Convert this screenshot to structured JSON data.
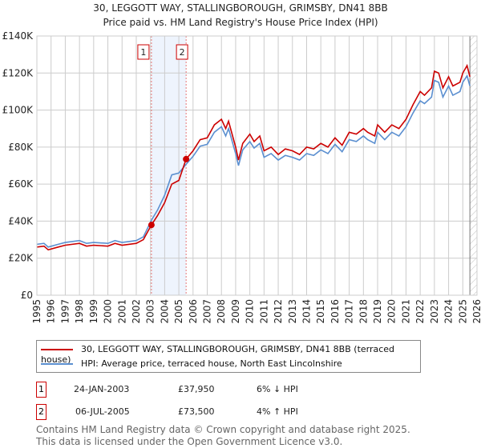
{
  "title_line1": "30, LEGGOTT WAY, STALLINGBOROUGH, GRIMSBY, DN41 8BB",
  "title_line2": "Price paid vs. HM Land Registry's House Price Index (HPI)",
  "chart_data": {
    "type": "line",
    "xlim": [
      1995,
      2026
    ],
    "ylim": [
      0,
      140000
    ],
    "x_ticks": [
      "1995",
      "1996",
      "1997",
      "1998",
      "1999",
      "2000",
      "2001",
      "2002",
      "2003",
      "2004",
      "2005",
      "2006",
      "2007",
      "2008",
      "2009",
      "2010",
      "2011",
      "2012",
      "2013",
      "2014",
      "2015",
      "2016",
      "2017",
      "2018",
      "2019",
      "2020",
      "2021",
      "2022",
      "2023",
      "2024",
      "2025",
      "2026"
    ],
    "y_ticks": [
      {
        "v": 0,
        "label": "£0"
      },
      {
        "v": 20000,
        "label": "£20K"
      },
      {
        "v": 40000,
        "label": "£40K"
      },
      {
        "v": 60000,
        "label": "£60K"
      },
      {
        "v": 80000,
        "label": "£80K"
      },
      {
        "v": 100000,
        "label": "£100K"
      },
      {
        "v": 120000,
        "label": "£120K"
      },
      {
        "v": 140000,
        "label": "£140K"
      }
    ],
    "grid": true,
    "shaded_range": [
      2003.07,
      2005.51
    ],
    "hatched_from": 2025.5,
    "series": [
      {
        "name": "30, LEGGOTT WAY, STALLINGBOROUGH, GRIMSBY, DN41 8BB (terraced house)",
        "color": "#cc0000",
        "x": [
          1995,
          1995.5,
          1995.8,
          1996.5,
          1997,
          1998,
          1998.5,
          1999,
          2000,
          2000.5,
          2001,
          2002,
          2002.5,
          2003.07,
          2003.5,
          2004,
          2004.5,
          2005,
          2005.51,
          2006,
          2006.5,
          2007,
          2007.5,
          2008,
          2008.3,
          2008.5,
          2009,
          2009.2,
          2009.5,
          2010,
          2010.3,
          2010.7,
          2011,
          2011.5,
          2012,
          2012.5,
          2013,
          2013.5,
          2014,
          2014.5,
          2015,
          2015.5,
          2016,
          2016.5,
          2017,
          2017.5,
          2018,
          2018.3,
          2018.8,
          2019,
          2019.5,
          2020,
          2020.5,
          2021,
          2021.5,
          2022,
          2022.3,
          2022.8,
          2023,
          2023.3,
          2023.6,
          2024,
          2024.3,
          2024.8,
          2025,
          2025.3,
          2025.5
        ],
        "y": [
          26000,
          26500,
          24500,
          26000,
          27000,
          28000,
          26500,
          27000,
          26500,
          28000,
          27000,
          28000,
          30000,
          37950,
          43000,
          50000,
          60000,
          62000,
          73500,
          78000,
          84000,
          85000,
          92000,
          95000,
          90000,
          94000,
          80000,
          73000,
          82000,
          87000,
          83000,
          86000,
          78000,
          80000,
          76000,
          79000,
          78000,
          76000,
          80000,
          79000,
          82000,
          80000,
          85000,
          81000,
          88000,
          87000,
          90000,
          88000,
          86000,
          92000,
          88000,
          92000,
          90000,
          95000,
          103000,
          110000,
          108000,
          112000,
          121000,
          120000,
          112000,
          118000,
          113000,
          115000,
          120000,
          124000,
          118000
        ]
      },
      {
        "name": "HPI: Average price, terraced house, North East Lincolnshire",
        "color": "#5b8fd0",
        "x": [
          1995,
          1995.5,
          1995.8,
          1996.5,
          1997,
          1998,
          1998.5,
          1999,
          2000,
          2000.5,
          2001,
          2002,
          2002.5,
          2003.07,
          2003.5,
          2004,
          2004.5,
          2005,
          2005.51,
          2006,
          2006.5,
          2007,
          2007.5,
          2008,
          2008.3,
          2008.5,
          2009,
          2009.2,
          2009.5,
          2010,
          2010.3,
          2010.7,
          2011,
          2011.5,
          2012,
          2012.5,
          2013,
          2013.5,
          2014,
          2014.5,
          2015,
          2015.5,
          2016,
          2016.5,
          2017,
          2017.5,
          2018,
          2018.3,
          2018.8,
          2019,
          2019.5,
          2020,
          2020.5,
          2021,
          2021.5,
          2022,
          2022.3,
          2022.8,
          2023,
          2023.3,
          2023.6,
          2024,
          2024.3,
          2024.8,
          2025,
          2025.3,
          2025.5
        ],
        "y": [
          27500,
          28000,
          26000,
          27500,
          28500,
          29500,
          28000,
          28500,
          28000,
          29500,
          28500,
          29500,
          31500,
          40500,
          46000,
          54000,
          65000,
          66000,
          70700,
          75000,
          80500,
          81500,
          88000,
          91000,
          86000,
          90000,
          76500,
          70000,
          78500,
          83000,
          79500,
          82000,
          74500,
          76500,
          73000,
          75500,
          74500,
          73000,
          76500,
          75500,
          78500,
          76500,
          81500,
          77500,
          84000,
          83000,
          86000,
          84000,
          82000,
          88000,
          84000,
          88000,
          86000,
          91000,
          98500,
          105000,
          103500,
          107000,
          116000,
          115000,
          107000,
          113000,
          108000,
          110000,
          115000,
          118500,
          113000
        ]
      }
    ],
    "annotations": [
      {
        "label": "1",
        "x": 2003.07,
        "y": 37950
      },
      {
        "label": "2",
        "x": 2005.51,
        "y": 73500
      }
    ]
  },
  "legend": {
    "series1": "30, LEGGOTT WAY, STALLINGBOROUGH, GRIMSBY, DN41 8BB (terraced house)",
    "series2": "HPI: Average price, terraced house, North East Lincolnshire"
  },
  "transactions": [
    {
      "num": "1",
      "date": "24-JAN-2003",
      "price": "£37,950",
      "hpi": "6% ↓ HPI"
    },
    {
      "num": "2",
      "date": "06-JUL-2005",
      "price": "£73,500",
      "hpi": "4% ↑ HPI"
    }
  ],
  "footer": [
    "Contains HM Land Registry data © Crown copyright and database right 2025.",
    "This data is licensed under the Open Government Licence v3.0."
  ]
}
